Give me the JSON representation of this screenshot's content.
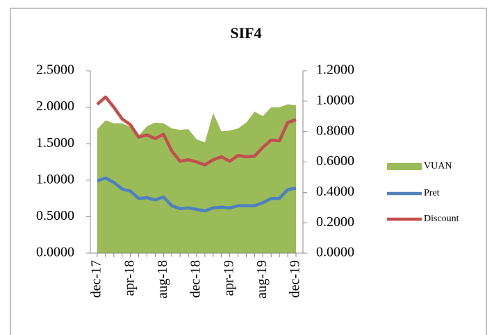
{
  "chart_data": {
    "type": "line",
    "title": "SIF4",
    "categories": [
      "dec-17",
      null,
      null,
      null,
      "apr-18",
      null,
      null,
      null,
      "aug-18",
      null,
      null,
      null,
      "dec-18",
      null,
      null,
      null,
      "apr-19",
      null,
      null,
      null,
      "aug-19",
      null,
      null,
      null,
      "dec-19"
    ],
    "series": [
      {
        "name": "VUAN",
        "type": "area",
        "color": "#9bbb59",
        "values": [
          1.7,
          1.82,
          1.78,
          1.78,
          1.73,
          1.61,
          1.74,
          1.79,
          1.78,
          1.71,
          1.69,
          1.7,
          1.56,
          1.52,
          1.92,
          1.67,
          1.68,
          1.71,
          1.79,
          1.94,
          1.88,
          2.0,
          2.0,
          2.04,
          2.03
        ]
      },
      {
        "name": "Pret",
        "type": "line",
        "color": "#4f81bd",
        "values": [
          0.99,
          1.03,
          0.97,
          0.88,
          0.85,
          0.75,
          0.76,
          0.73,
          0.77,
          0.65,
          0.61,
          0.62,
          0.6,
          0.58,
          0.62,
          0.63,
          0.62,
          0.65,
          0.65,
          0.65,
          0.69,
          0.75,
          0.75,
          0.87,
          0.89
        ]
      },
      {
        "name": "Discount",
        "type": "line",
        "color": "#c0504d",
        "values": [
          2.04,
          2.14,
          2.0,
          1.84,
          1.76,
          1.59,
          1.62,
          1.57,
          1.63,
          1.4,
          1.26,
          1.28,
          1.25,
          1.21,
          1.28,
          1.32,
          1.26,
          1.34,
          1.32,
          1.33,
          1.45,
          1.55,
          1.54,
          1.79,
          1.83
        ]
      }
    ],
    "ylim": [
      0,
      2.5
    ],
    "yticks": [
      {
        "value": 0,
        "label": "0.0000"
      },
      {
        "value": 0.5,
        "label": "0.5000"
      },
      {
        "value": 1,
        "label": "1.0000"
      },
      {
        "value": 1.5,
        "label": "1.5000"
      },
      {
        "value": 2,
        "label": "2.0000"
      },
      {
        "value": 2.5,
        "label": "2.5000"
      }
    ],
    "y2lim": [
      0,
      1.2
    ],
    "y2ticks": [
      {
        "value": 0,
        "label": "0.0000"
      },
      {
        "value": 0.2,
        "label": "0.2000"
      },
      {
        "value": 0.4,
        "label": "0.4000"
      },
      {
        "value": 0.6,
        "label": "0.6000"
      },
      {
        "value": 0.8,
        "label": "0.8000"
      },
      {
        "value": 1,
        "label": "1.0000"
      },
      {
        "value": 1.2,
        "label": "1.2000"
      }
    ],
    "legend": "right"
  }
}
